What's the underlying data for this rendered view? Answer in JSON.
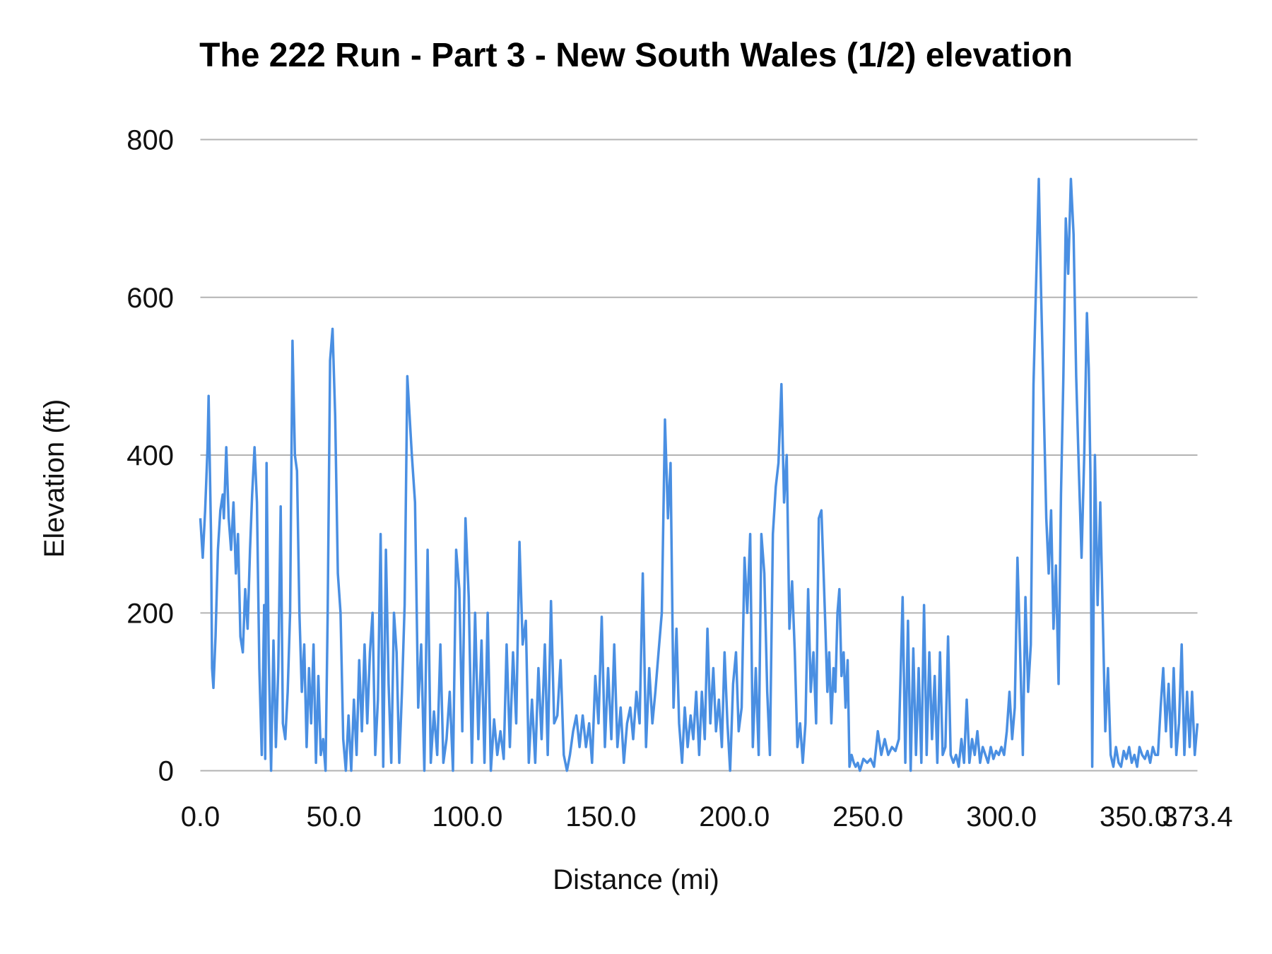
{
  "chart_data": {
    "type": "line",
    "title": "The 222 Run - Part 3 - New South Wales (1/2) elevation",
    "xlabel": "Distance (mi)",
    "ylabel": "Elevation (ft)",
    "xlim": [
      0,
      373.4
    ],
    "ylim": [
      0,
      800
    ],
    "x_ticks": [
      "0.0",
      "50.0",
      "100.0",
      "150.0",
      "200.0",
      "250.0",
      "300.0",
      "350.0",
      "373.4"
    ],
    "x_tick_values": [
      0,
      50,
      100,
      150,
      200,
      250,
      300,
      350,
      373.4
    ],
    "y_ticks": [
      0,
      200,
      400,
      600,
      800
    ],
    "grid": "horizontal",
    "legend": "none",
    "color": "#4a8fe2",
    "points": [
      [
        0,
        320
      ],
      [
        0.9,
        270
      ],
      [
        1.8,
        330
      ],
      [
        2.7,
        410
      ],
      [
        3.1,
        475
      ],
      [
        4.0,
        300
      ],
      [
        4.4,
        130
      ],
      [
        4.9,
        105
      ],
      [
        5.7,
        170
      ],
      [
        6.6,
        280
      ],
      [
        7.5,
        330
      ],
      [
        8.4,
        350
      ],
      [
        8.8,
        320
      ],
      [
        9.7,
        410
      ],
      [
        10.6,
        320
      ],
      [
        11.5,
        280
      ],
      [
        12.4,
        340
      ],
      [
        13.3,
        250
      ],
      [
        14.1,
        300
      ],
      [
        15.0,
        170
      ],
      [
        15.9,
        150
      ],
      [
        16.8,
        230
      ],
      [
        17.7,
        180
      ],
      [
        18.6,
        280
      ],
      [
        19.4,
        350
      ],
      [
        20.3,
        410
      ],
      [
        21.2,
        340
      ],
      [
        22.1,
        130
      ],
      [
        23.0,
        20
      ],
      [
        23.9,
        210
      ],
      [
        24.3,
        15
      ],
      [
        24.8,
        390
      ],
      [
        25.6,
        150
      ],
      [
        26.5,
        0
      ],
      [
        27.4,
        165
      ],
      [
        28.3,
        30
      ],
      [
        29.2,
        130
      ],
      [
        30.1,
        335
      ],
      [
        30.9,
        60
      ],
      [
        31.8,
        40
      ],
      [
        32.7,
        100
      ],
      [
        33.6,
        200
      ],
      [
        34.5,
        545
      ],
      [
        35.4,
        400
      ],
      [
        36.2,
        380
      ],
      [
        37.1,
        200
      ],
      [
        38.0,
        100
      ],
      [
        38.9,
        160
      ],
      [
        39.8,
        30
      ],
      [
        40.7,
        130
      ],
      [
        41.5,
        60
      ],
      [
        42.4,
        160
      ],
      [
        43.3,
        10
      ],
      [
        44.2,
        120
      ],
      [
        45.1,
        20
      ],
      [
        46.0,
        40
      ],
      [
        46.9,
        0
      ],
      [
        47.7,
        200
      ],
      [
        48.6,
        520
      ],
      [
        49.5,
        560
      ],
      [
        50.5,
        450
      ],
      [
        51.5,
        250
      ],
      [
        52.5,
        200
      ],
      [
        53.5,
        40
      ],
      [
        54.5,
        0
      ],
      [
        55.5,
        70
      ],
      [
        56.5,
        0
      ],
      [
        57.5,
        90
      ],
      [
        58.5,
        20
      ],
      [
        59.5,
        140
      ],
      [
        60.5,
        50
      ],
      [
        61.5,
        160
      ],
      [
        62.5,
        60
      ],
      [
        63.5,
        150
      ],
      [
        64.5,
        200
      ],
      [
        65.5,
        20
      ],
      [
        66.5,
        90
      ],
      [
        67.5,
        300
      ],
      [
        68.5,
        5
      ],
      [
        69.5,
        280
      ],
      [
        70.5,
        110
      ],
      [
        71.5,
        10
      ],
      [
        72.5,
        200
      ],
      [
        73.5,
        150
      ],
      [
        74.5,
        10
      ],
      [
        75.5,
        100
      ],
      [
        76.5,
        210
      ],
      [
        77.5,
        500
      ],
      [
        79.2,
        400
      ],
      [
        80.4,
        340
      ],
      [
        81.6,
        80
      ],
      [
        82.7,
        160
      ],
      [
        83.9,
        0
      ],
      [
        85.1,
        280
      ],
      [
        86.3,
        10
      ],
      [
        87.5,
        75
      ],
      [
        88.7,
        20
      ],
      [
        89.9,
        160
      ],
      [
        91.0,
        10
      ],
      [
        92.2,
        40
      ],
      [
        93.4,
        100
      ],
      [
        94.6,
        0
      ],
      [
        95.8,
        280
      ],
      [
        97.0,
        230
      ],
      [
        98.1,
        50
      ],
      [
        99.3,
        320
      ],
      [
        100.5,
        220
      ],
      [
        101.7,
        10
      ],
      [
        102.9,
        200
      ],
      [
        104.1,
        40
      ],
      [
        105.3,
        165
      ],
      [
        106.4,
        10
      ],
      [
        107.6,
        200
      ],
      [
        108.8,
        0
      ],
      [
        110.0,
        65
      ],
      [
        111.2,
        20
      ],
      [
        112.4,
        50
      ],
      [
        113.6,
        15
      ],
      [
        114.7,
        160
      ],
      [
        115.9,
        30
      ],
      [
        117.1,
        150
      ],
      [
        118.3,
        60
      ],
      [
        119.5,
        290
      ],
      [
        120.7,
        160
      ],
      [
        121.9,
        190
      ],
      [
        123.0,
        10
      ],
      [
        124.2,
        90
      ],
      [
        125.4,
        10
      ],
      [
        126.6,
        130
      ],
      [
        127.8,
        40
      ],
      [
        129.0,
        160
      ],
      [
        130.1,
        20
      ],
      [
        131.3,
        215
      ],
      [
        132.5,
        60
      ],
      [
        133.7,
        70
      ],
      [
        134.9,
        140
      ],
      [
        136.1,
        20
      ],
      [
        137.3,
        0
      ],
      [
        138.4,
        20
      ],
      [
        139.6,
        50
      ],
      [
        140.8,
        70
      ],
      [
        142.0,
        30
      ],
      [
        143.2,
        70
      ],
      [
        144.4,
        30
      ],
      [
        145.6,
        60
      ],
      [
        146.7,
        10
      ],
      [
        147.9,
        120
      ],
      [
        149.1,
        60
      ],
      [
        150.3,
        195
      ],
      [
        151.5,
        30
      ],
      [
        152.7,
        130
      ],
      [
        153.9,
        40
      ],
      [
        155.0,
        160
      ],
      [
        156.2,
        30
      ],
      [
        157.4,
        80
      ],
      [
        158.6,
        10
      ],
      [
        159.8,
        60
      ],
      [
        161.0,
        80
      ],
      [
        162.1,
        40
      ],
      [
        163.3,
        100
      ],
      [
        164.5,
        60
      ],
      [
        165.7,
        250
      ],
      [
        166.9,
        30
      ],
      [
        168.1,
        130
      ],
      [
        169.3,
        60
      ],
      [
        170.4,
        100
      ],
      [
        171.6,
        150
      ],
      [
        172.8,
        200
      ],
      [
        174.0,
        445
      ],
      [
        175.1,
        320
      ],
      [
        176.1,
        390
      ],
      [
        177.2,
        80
      ],
      [
        178.3,
        180
      ],
      [
        179.3,
        60
      ],
      [
        180.4,
        10
      ],
      [
        181.4,
        80
      ],
      [
        182.5,
        30
      ],
      [
        183.6,
        70
      ],
      [
        184.6,
        40
      ],
      [
        185.7,
        100
      ],
      [
        186.8,
        20
      ],
      [
        187.8,
        100
      ],
      [
        188.9,
        40
      ],
      [
        189.9,
        180
      ],
      [
        191.0,
        60
      ],
      [
        192.1,
        130
      ],
      [
        193.1,
        50
      ],
      [
        194.2,
        90
      ],
      [
        195.3,
        30
      ],
      [
        196.3,
        150
      ],
      [
        197.4,
        60
      ],
      [
        198.4,
        0
      ],
      [
        199.5,
        110
      ],
      [
        200.6,
        150
      ],
      [
        201.6,
        50
      ],
      [
        202.7,
        80
      ],
      [
        203.8,
        270
      ],
      [
        204.8,
        200
      ],
      [
        205.9,
        300
      ],
      [
        206.9,
        30
      ],
      [
        208.0,
        130
      ],
      [
        209.1,
        20
      ],
      [
        210.1,
        300
      ],
      [
        211.2,
        250
      ],
      [
        212.3,
        100
      ],
      [
        213.3,
        20
      ],
      [
        214.4,
        300
      ],
      [
        215.5,
        360
      ],
      [
        216.5,
        390
      ],
      [
        217.6,
        490
      ],
      [
        218.6,
        340
      ],
      [
        219.6,
        400
      ],
      [
        220.6,
        180
      ],
      [
        221.6,
        240
      ],
      [
        222.6,
        150
      ],
      [
        223.6,
        30
      ],
      [
        224.6,
        60
      ],
      [
        225.6,
        10
      ],
      [
        226.6,
        60
      ],
      [
        227.6,
        230
      ],
      [
        228.6,
        100
      ],
      [
        229.6,
        150
      ],
      [
        230.6,
        60
      ],
      [
        231.6,
        320
      ],
      [
        232.6,
        330
      ],
      [
        233.3,
        260
      ],
      [
        234.0,
        190
      ],
      [
        234.8,
        100
      ],
      [
        235.5,
        150
      ],
      [
        236.3,
        60
      ],
      [
        237.1,
        130
      ],
      [
        237.8,
        100
      ],
      [
        238.6,
        200
      ],
      [
        239.3,
        230
      ],
      [
        240.1,
        120
      ],
      [
        240.9,
        150
      ],
      [
        241.6,
        80
      ],
      [
        242.4,
        140
      ],
      [
        243.1,
        5
      ],
      [
        243.9,
        20
      ],
      [
        244.7,
        10
      ],
      [
        245.4,
        5
      ],
      [
        246.2,
        10
      ],
      [
        247.0,
        0
      ],
      [
        248.3,
        15
      ],
      [
        249.7,
        10
      ],
      [
        251.0,
        15
      ],
      [
        252.3,
        5
      ],
      [
        253.7,
        50
      ],
      [
        255.0,
        20
      ],
      [
        256.3,
        40
      ],
      [
        257.6,
        20
      ],
      [
        259.0,
        30
      ],
      [
        260.3,
        25
      ],
      [
        261.6,
        40
      ],
      [
        263.0,
        220
      ],
      [
        264,
        10
      ],
      [
        265,
        190
      ],
      [
        266,
        0
      ],
      [
        267,
        155
      ],
      [
        268,
        20
      ],
      [
        269,
        130
      ],
      [
        270,
        10
      ],
      [
        271,
        210
      ],
      [
        272,
        20
      ],
      [
        273,
        150
      ],
      [
        274,
        40
      ],
      [
        275,
        120
      ],
      [
        276,
        10
      ],
      [
        277,
        150
      ],
      [
        278,
        20
      ],
      [
        279,
        30
      ],
      [
        280,
        170
      ],
      [
        281,
        20
      ],
      [
        282,
        10
      ],
      [
        283,
        20
      ],
      [
        284,
        5
      ],
      [
        285,
        40
      ],
      [
        286,
        10
      ],
      [
        287,
        90
      ],
      [
        288,
        10
      ],
      [
        289,
        40
      ],
      [
        290,
        20
      ],
      [
        291,
        50
      ],
      [
        292,
        10
      ],
      [
        293,
        30
      ],
      [
        294,
        20
      ],
      [
        295,
        10
      ],
      [
        296,
        30
      ],
      [
        297,
        15
      ],
      [
        298,
        25
      ],
      [
        299,
        20
      ],
      [
        300,
        30
      ],
      [
        301,
        20
      ],
      [
        302,
        50
      ],
      [
        303,
        100
      ],
      [
        304,
        40
      ],
      [
        305,
        80
      ],
      [
        306,
        270
      ],
      [
        307,
        150
      ],
      [
        308,
        20
      ],
      [
        309,
        220
      ],
      [
        310,
        100
      ],
      [
        311,
        160
      ],
      [
        312,
        490
      ],
      [
        314,
        750
      ],
      [
        314.9,
        600
      ],
      [
        315.8,
        470
      ],
      [
        316.8,
        320
      ],
      [
        317.7,
        250
      ],
      [
        318.6,
        330
      ],
      [
        319.5,
        180
      ],
      [
        320.4,
        260
      ],
      [
        321.4,
        110
      ],
      [
        322.3,
        350
      ],
      [
        323.2,
        500
      ],
      [
        324.1,
        700
      ],
      [
        325.0,
        630
      ],
      [
        326.0,
        750
      ],
      [
        327,
        680
      ],
      [
        328,
        500
      ],
      [
        329,
        380
      ],
      [
        330,
        270
      ],
      [
        331,
        400
      ],
      [
        332,
        580
      ],
      [
        332.7,
        510
      ],
      [
        333.3,
        380
      ],
      [
        334,
        5
      ],
      [
        335.0,
        400
      ],
      [
        336.0,
        210
      ],
      [
        337.0,
        340
      ],
      [
        337.9,
        200
      ],
      [
        338.9,
        50
      ],
      [
        339.9,
        130
      ],
      [
        340.9,
        20
      ],
      [
        341.9,
        5
      ],
      [
        342.9,
        30
      ],
      [
        343.9,
        10
      ],
      [
        344.8,
        5
      ],
      [
        345.8,
        25
      ],
      [
        346.8,
        15
      ],
      [
        347.8,
        30
      ],
      [
        348.8,
        10
      ],
      [
        349.8,
        20
      ],
      [
        350.8,
        5
      ],
      [
        351.7,
        30
      ],
      [
        352.7,
        20
      ],
      [
        353.7,
        15
      ],
      [
        354.7,
        25
      ],
      [
        355.7,
        10
      ],
      [
        356.7,
        30
      ],
      [
        357.6,
        20
      ],
      [
        358.6,
        20
      ],
      [
        359.6,
        80
      ],
      [
        360.6,
        130
      ],
      [
        361.6,
        50
      ],
      [
        362.6,
        110
      ],
      [
        363.6,
        30
      ],
      [
        364.5,
        130
      ],
      [
        365.5,
        20
      ],
      [
        366.5,
        60
      ],
      [
        367.5,
        160
      ],
      [
        368.5,
        20
      ],
      [
        369.5,
        100
      ],
      [
        370.5,
        30
      ],
      [
        371.4,
        100
      ],
      [
        372.4,
        20
      ],
      [
        373.4,
        60
      ]
    ]
  }
}
